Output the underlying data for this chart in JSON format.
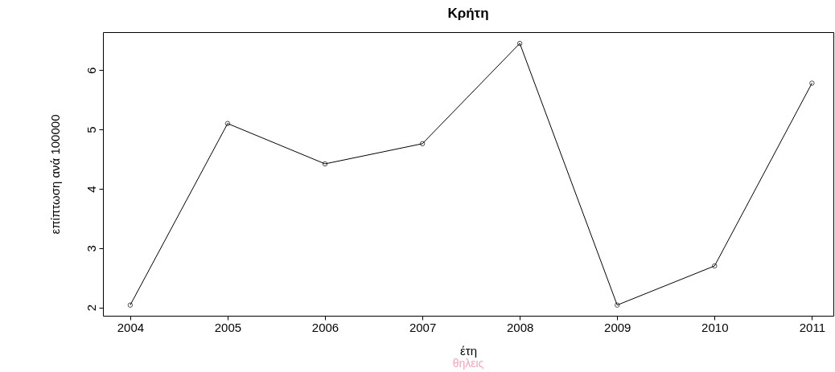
{
  "chart_data": {
    "type": "line",
    "title": "Κρήτη",
    "xlabel": "έτη",
    "ylabel": "επίπτωση ανά 100000",
    "annotations": [
      "θηλεις"
    ],
    "x": [
      2004,
      2005,
      2006,
      2007,
      2008,
      2009,
      2010,
      2011
    ],
    "series": [
      {
        "color": "#000000",
        "values": [
          2.04,
          5.1,
          4.42,
          4.76,
          6.45,
          2.04,
          2.7,
          5.78
        ]
      }
    ],
    "xlim": [
      2003.72,
      2011.22
    ],
    "ylim": [
      1.86,
      6.64
    ],
    "xticks": [
      2004,
      2005,
      2006,
      2007,
      2008,
      2009,
      2010,
      2011
    ],
    "yticks": [
      2,
      3,
      4,
      5,
      6
    ],
    "grid": false,
    "marker": "circle",
    "line_style": "solid"
  }
}
